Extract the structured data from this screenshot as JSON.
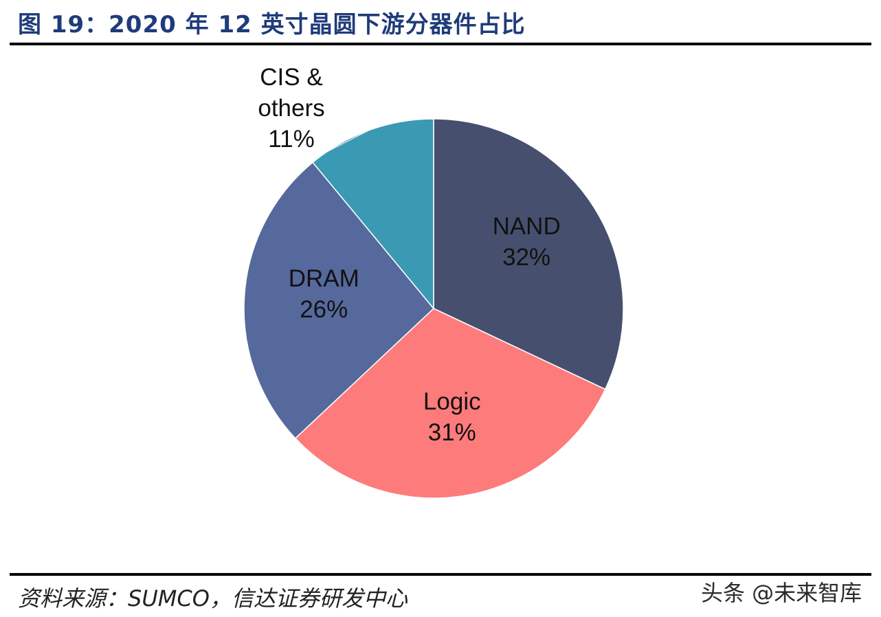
{
  "title": "图 19：2020 年 12 英寸晶圆下游分器件占比",
  "source": "资料来源：SUMCO，信达证券研发中心",
  "watermark": "头条 @未来智库",
  "chart_data": {
    "type": "pie",
    "title": "",
    "slices": [
      {
        "label": "NAND",
        "value": 32,
        "value_label": "32%",
        "color": "#46506e"
      },
      {
        "label": "Logic",
        "value": 31,
        "value_label": "31%",
        "color": "#fd7b7b"
      },
      {
        "label": "DRAM",
        "value": 26,
        "value_label": "26%",
        "color": "#56699c"
      },
      {
        "label": "CIS & others",
        "value": 11,
        "value_label": "11%",
        "color": "#3b9ab3"
      }
    ],
    "start_angle": "12 o'clock",
    "direction": "clockwise",
    "legend": "none"
  }
}
